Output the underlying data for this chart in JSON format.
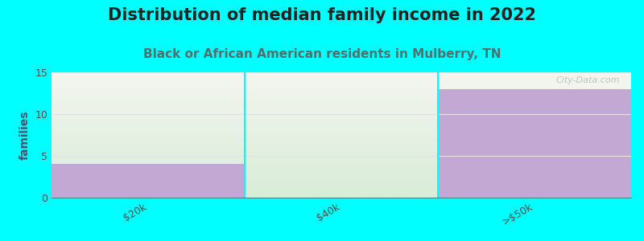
{
  "title": "Distribution of median family income in 2022",
  "subtitle": "Black or African American residents in Mulberry, TN",
  "categories": [
    "$20k",
    "$40k",
    ">$50k"
  ],
  "values": [
    4,
    0,
    13
  ],
  "bar_color": "#c4a8d4",
  "bg_fill_color_top": "#f5f5f0",
  "bg_fill_color_bottom": "#d8edd8",
  "background_color": "#00ffff",
  "ylabel": "families",
  "ylim": [
    0,
    15
  ],
  "yticks": [
    0,
    5,
    10,
    15
  ],
  "title_fontsize": 15,
  "subtitle_fontsize": 11,
  "watermark": "City-Data.com",
  "subtitle_color": "#507070",
  "title_color": "#222222",
  "tick_color": "#505050",
  "grid_color": "#e0e0e8",
  "ylabel_color": "#505070"
}
